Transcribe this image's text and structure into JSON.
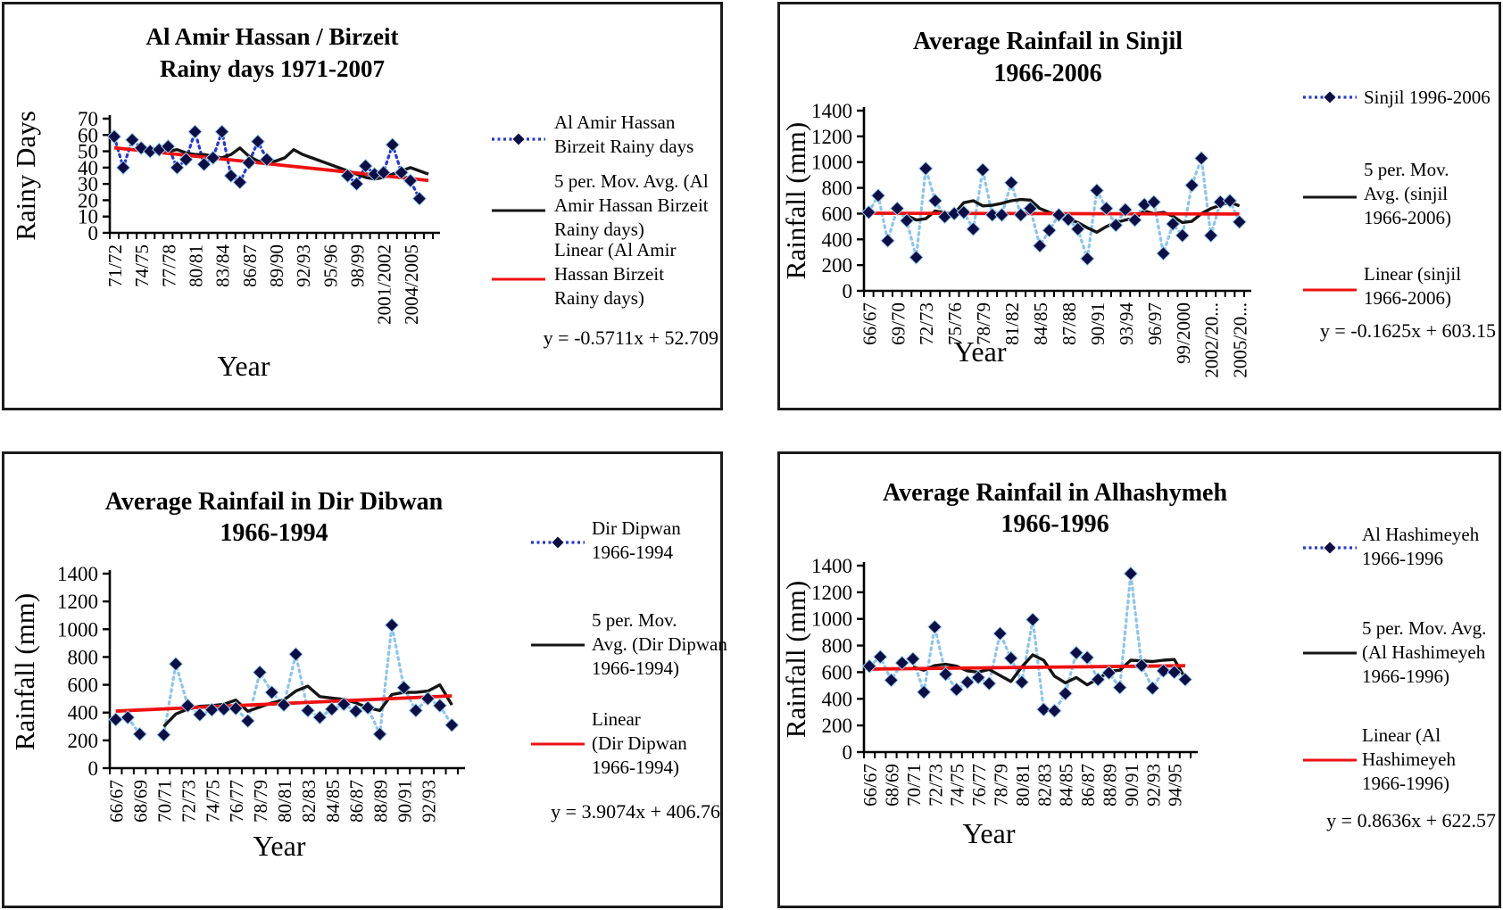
{
  "colors": {
    "dotted_vivid": "#2438d8",
    "dotted_light": "#8cc5ec",
    "marker_fill": "#0e0e46",
    "marker_edge": "#9fd0f0",
    "moving_avg": "#151515",
    "linear": "#ee1111",
    "axis": "#000000",
    "text": "#000000",
    "legend_dash": "#2438d8"
  },
  "chart_data": [
    {
      "id": "birzeit",
      "type": "line",
      "title_lines": [
        "Al Amir Hassan / Birzeit",
        "Rainy days 1971-2007"
      ],
      "xlabel": "Year",
      "ylabel": "Rainy Days",
      "ylim": [
        0,
        70
      ],
      "ytick_step": 10,
      "x_tick_labels": [
        "71/72",
        "74/75",
        "77/78",
        "80/81",
        "83/84",
        "86/87",
        "89/90",
        "92/93",
        "95/96",
        "98/99",
        "2001/2002",
        "2004/2005"
      ],
      "x_tick_step": 3,
      "line_style": "vivid",
      "series": [
        {
          "name": "Al Amir Hassan Birzeit Rainy days",
          "kind": "data",
          "values": [
            59,
            40,
            57,
            52,
            50,
            51,
            53,
            40,
            45,
            62,
            42,
            46,
            62,
            35,
            31,
            43,
            56,
            45,
            null,
            null,
            null,
            null,
            null,
            null,
            null,
            null,
            35,
            30,
            41,
            36,
            37,
            54,
            37,
            32,
            21,
            null
          ]
        },
        {
          "name": "5 per. Mov. Avg. (Al Amir Hassan Birzeit Rainy days)",
          "kind": "moving_average",
          "values": [
            null,
            null,
            null,
            null,
            52,
            51,
            50,
            51,
            49,
            48,
            48,
            47,
            46,
            48,
            52,
            47,
            44,
            43,
            44,
            46,
            51,
            48,
            46,
            44,
            42,
            40,
            38,
            36,
            34,
            33,
            34,
            36,
            38,
            40,
            38,
            36
          ]
        },
        {
          "name": "Linear (Al Amir Hassan Birzeit Rainy days)",
          "kind": "linear_trend",
          "slope": -0.5711,
          "intercept": 52.709
        }
      ],
      "equation": "y = -0.5711x + 52.709",
      "legend": [
        {
          "lines": [
            "Al Amir Hassan",
            "Birzeit Rainy days"
          ]
        },
        {
          "lines": [
            "5 per. Mov. Avg. (Al",
            "Amir Hassan Birzeit",
            "Rainy days)"
          ]
        },
        {
          "lines": [
            "Linear (Al Amir",
            "Hassan Birzeit",
            "Rainy days)"
          ]
        }
      ]
    },
    {
      "id": "sinjil",
      "type": "line",
      "title_lines": [
        "Average Rainfail in Sinjil",
        "1966-2006"
      ],
      "xlabel": "Year",
      "ylabel": "Rainfall (mm)",
      "ylim": [
        0,
        1400
      ],
      "ytick_step": 200,
      "x_tick_labels": [
        "66/67",
        "69/70",
        "72/73",
        "75/76",
        "78/79",
        "81/82",
        "84/85",
        "87/88",
        "90/91",
        "93/94",
        "96/97",
        "99/2000",
        "2002/20...",
        "2005/20..."
      ],
      "x_tick_step": 3,
      "line_style": "light",
      "series": [
        {
          "name": "Sinjil 1996-2006",
          "kind": "data",
          "values": [
            610,
            740,
            390,
            640,
            545,
            260,
            950,
            700,
            575,
            600,
            610,
            480,
            940,
            590,
            590,
            840,
            590,
            640,
            350,
            470,
            590,
            555,
            480,
            250,
            780,
            640,
            510,
            630,
            550,
            670,
            690,
            290,
            520,
            430,
            820,
            1030,
            430,
            690,
            700,
            535
          ]
        },
        {
          "name": "5 per. Mov. Avg. (sinjil 1966-2006)",
          "kind": "moving_average",
          "values": [
            null,
            null,
            null,
            null,
            585,
            550,
            560,
            620,
            605,
            600,
            685,
            700,
            660,
            665,
            680,
            700,
            710,
            705,
            640,
            610,
            580,
            560,
            530,
            490,
            455,
            500,
            530,
            550,
            565,
            620,
            600,
            610,
            580,
            530,
            540,
            600,
            640,
            665,
            690,
            660
          ]
        },
        {
          "name": "Linear (sinjil 1966-2006)",
          "kind": "linear_trend",
          "slope": -0.1625,
          "intercept": 603.15
        }
      ],
      "equation": "y = -0.1625x + 603.15",
      "legend": [
        {
          "lines": [
            "Sinjil 1996-2006"
          ]
        },
        {
          "lines": [
            "5 per. Mov.",
            "Avg. (sinjil",
            "1966-2006)"
          ]
        },
        {
          "lines": [
            "Linear (sinjil",
            "1966-2006)"
          ]
        }
      ]
    },
    {
      "id": "dir-dibwan",
      "type": "line",
      "title_lines": [
        "Average Rainfail in Dir Dibwan",
        "1966-1994"
      ],
      "xlabel": "Year",
      "ylabel": "Rainfall (mm)",
      "ylim": [
        0,
        1400
      ],
      "ytick_step": 200,
      "x_tick_labels": [
        "66/67",
        "68/69",
        "70/71",
        "72/73",
        "74/75",
        "76/77",
        "78/79",
        "80/81",
        "82/83",
        "84/85",
        "86/87",
        "88/89",
        "90/91",
        "92/93"
      ],
      "x_tick_step": 2,
      "line_style": "light",
      "series": [
        {
          "name": "Dir Dipwan 1966-1994",
          "kind": "data",
          "values": [
            350,
            365,
            245,
            null,
            240,
            750,
            450,
            385,
            420,
            425,
            430,
            340,
            690,
            545,
            455,
            820,
            415,
            365,
            425,
            460,
            410,
            435,
            245,
            1030,
            580,
            415,
            500,
            450,
            310
          ]
        },
        {
          "name": "5 per. Mov. Avg. (Dir Dipwan 1966-1994)",
          "kind": "moving_average",
          "values": [
            null,
            null,
            null,
            null,
            300,
            390,
            425,
            445,
            450,
            460,
            490,
            410,
            440,
            470,
            490,
            555,
            590,
            515,
            505,
            495,
            470,
            435,
            415,
            530,
            545,
            545,
            555,
            600,
            455
          ]
        },
        {
          "name": "Linear (Dir Dipwan 1966-1994)",
          "kind": "linear_trend",
          "slope": 3.9074,
          "intercept": 406.76
        }
      ],
      "equation": "y = 3.9074x + 406.76",
      "legend": [
        {
          "lines": [
            "Dir Dipwan",
            "1966-1994"
          ]
        },
        {
          "lines": [
            "5 per. Mov.",
            "Avg. (Dir Dipwan",
            "1966-1994)"
          ]
        },
        {
          "lines": [
            "Linear",
            "(Dir Dipwan",
            "1966-1994)"
          ]
        }
      ]
    },
    {
      "id": "alhashymeh",
      "type": "line",
      "title_lines": [
        "Average Rainfail in Alhashymeh",
        "1966-1996"
      ],
      "xlabel": "Year",
      "ylabel": "Rainfall (mm)",
      "ylim": [
        0,
        1400
      ],
      "ytick_step": 200,
      "x_tick_labels": [
        "66/67",
        "68/69",
        "70/71",
        "72/73",
        "74/75",
        "76/77",
        "78/79",
        "80/81",
        "82/83",
        "84/85",
        "86/87",
        "88/89",
        "90/91",
        "92/93",
        "94/95"
      ],
      "x_tick_step": 2,
      "line_style": "light",
      "series": [
        {
          "name": "Al Hashimeyeh 1966-1996",
          "kind": "data",
          "values": [
            645,
            715,
            540,
            670,
            700,
            450,
            940,
            585,
            470,
            525,
            560,
            515,
            890,
            705,
            525,
            995,
            320,
            310,
            440,
            745,
            710,
            545,
            595,
            485,
            1340,
            650,
            480,
            610,
            600,
            545
          ]
        },
        {
          "name": "5 per. Mov. Avg. (Al Hashimeyeh 1966-1996)",
          "kind": "moving_average",
          "values": [
            null,
            null,
            null,
            null,
            640,
            615,
            650,
            660,
            645,
            610,
            600,
            620,
            575,
            530,
            640,
            730,
            690,
            570,
            520,
            560,
            505,
            550,
            605,
            615,
            690,
            685,
            680,
            690,
            695,
            555
          ]
        },
        {
          "name": "Linear (Al Hashimeyeh 1966-1996)",
          "kind": "linear_trend",
          "slope": 0.8636,
          "intercept": 622.57
        }
      ],
      "equation": "y = 0.8636x + 622.57",
      "legend": [
        {
          "lines": [
            "Al Hashimeyeh",
            "1966-1996"
          ]
        },
        {
          "lines": [
            "5 per. Mov. Avg.",
            "(Al Hashimeyeh",
            "1966-1996)"
          ]
        },
        {
          "lines": [
            "Linear (Al",
            "Hashimeyeh",
            "1966-1996)"
          ]
        }
      ]
    }
  ]
}
